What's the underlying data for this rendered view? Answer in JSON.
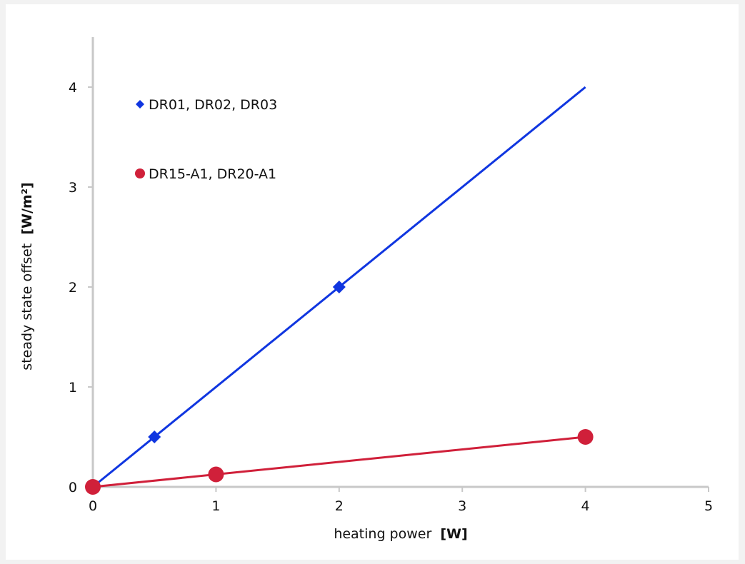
{
  "chart_data": {
    "type": "scatter",
    "title": "",
    "xlabel": "heating power",
    "xlabel_unit": "[W]",
    "ylabel": "steady state offset",
    "ylabel_unit": "[W/m²]",
    "xlim": [
      0,
      5
    ],
    "ylim": [
      0,
      4.5
    ],
    "x_ticks": [
      0,
      1,
      2,
      3,
      4,
      5
    ],
    "y_ticks": [
      0,
      1,
      2,
      3,
      4
    ],
    "grid": false,
    "legend_position": "top-left",
    "series": [
      {
        "name": "DR01, DR02, DR03",
        "color": "#1036e0",
        "marker": "diamond",
        "points": [
          [
            0,
            0
          ],
          [
            0.5,
            0.5
          ],
          [
            2,
            2
          ]
        ],
        "trend_line": [
          [
            0,
            0
          ],
          [
            4,
            4
          ]
        ]
      },
      {
        "name": "DR15-A1, DR20-A1",
        "color": "#d0203a",
        "marker": "circle",
        "points": [
          [
            0,
            0
          ],
          [
            1,
            0.125
          ],
          [
            4,
            0.5
          ]
        ],
        "trend_line": [
          [
            0,
            0
          ],
          [
            4,
            0.5
          ]
        ]
      }
    ]
  }
}
